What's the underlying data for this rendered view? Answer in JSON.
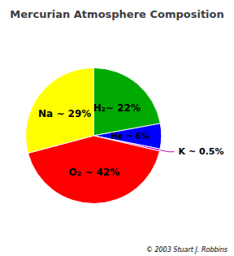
{
  "chart_data": {
    "type": "pie",
    "title": "Mercurian Atmosphere Composition",
    "values": [
      22,
      6,
      0.5,
      42,
      29
    ],
    "value_labels": [
      "H₂~ 22%",
      "He ~ 6%",
      "K ~ 0.5%",
      "O₂ ~ 42%",
      "Na ~ 29%"
    ],
    "colors": [
      "#00aa00",
      "#0000ff",
      "#cc00cc",
      "#ff0000",
      "#ffff00"
    ],
    "data_labels": true,
    "legend": false,
    "annotations": [
      "© 2003 Stuart J. Robbins"
    ]
  }
}
